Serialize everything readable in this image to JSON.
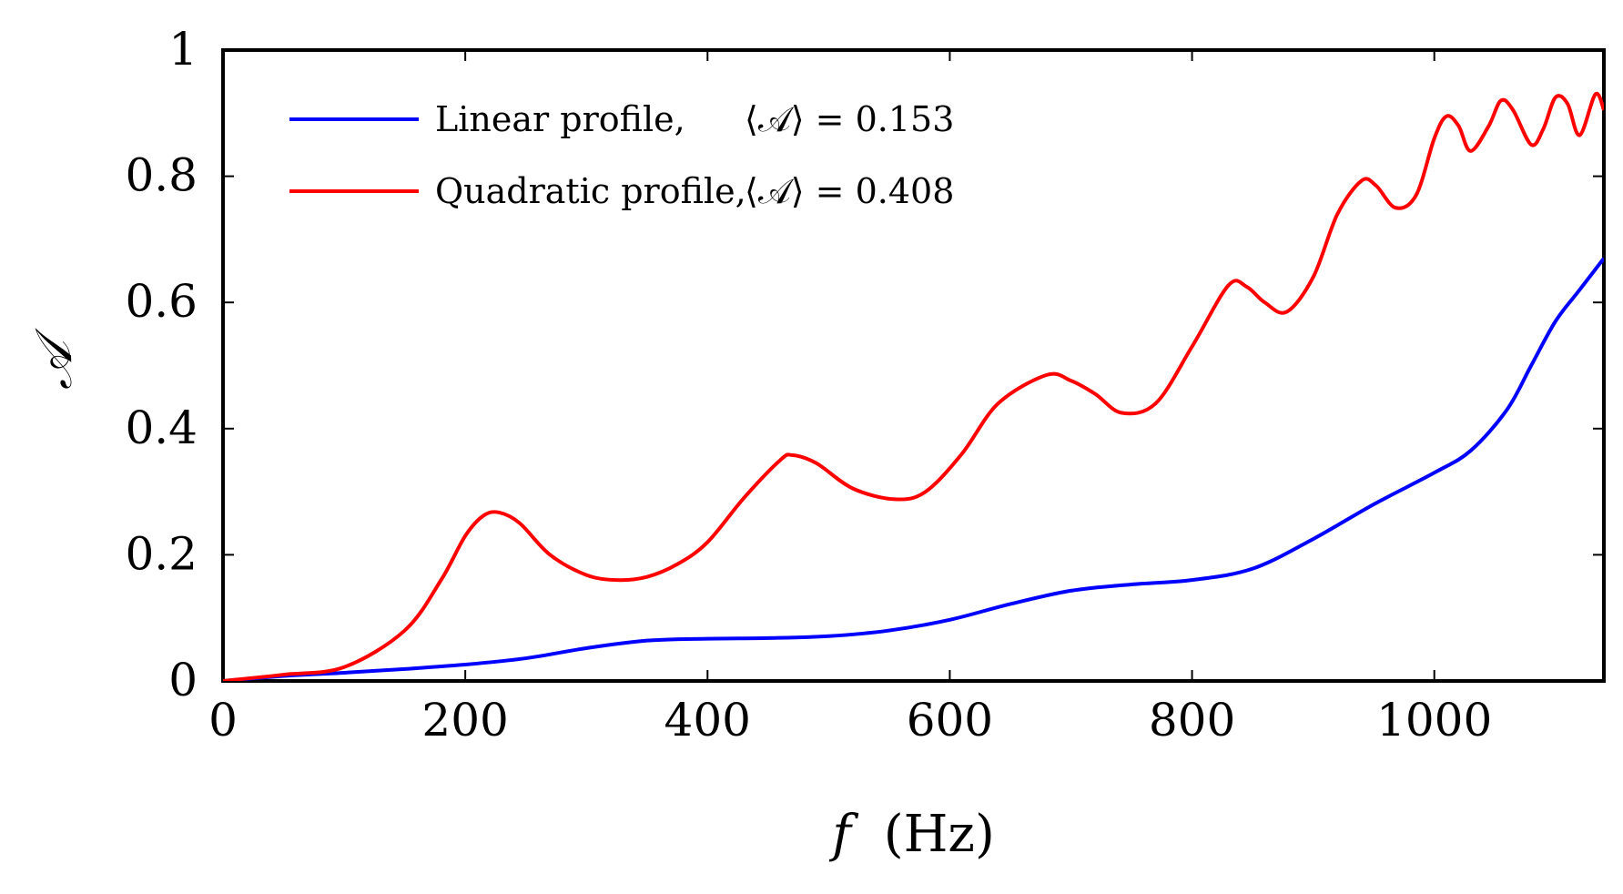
{
  "chart_data": {
    "type": "line",
    "title": "",
    "xlabel": "f (Hz)",
    "xlabel_var": "f",
    "xlabel_unit": "(Hz)",
    "ylabel": "𝒜",
    "xlim": [
      0,
      1140
    ],
    "ylim": [
      0,
      1
    ],
    "xticks": [
      0,
      200,
      400,
      600,
      800,
      1000
    ],
    "xtick_labels": [
      "0",
      "200",
      "400",
      "600",
      "800",
      "1000"
    ],
    "yticks": [
      0,
      0.2,
      0.4,
      0.6,
      0.8,
      1
    ],
    "ytick_labels": [
      "0",
      "0.2",
      "0.4",
      "0.6",
      "0.8",
      "1"
    ],
    "grid": false,
    "legend_position": "top-left",
    "series": [
      {
        "name": "Linear profile,",
        "mean_label": "⟨𝒜⟩ = 0.153",
        "color": "#0000ff",
        "x": [
          0,
          50,
          100,
          150,
          200,
          250,
          300,
          350,
          400,
          450,
          500,
          550,
          600,
          650,
          700,
          750,
          800,
          850,
          900,
          950,
          1000,
          1030,
          1060,
          1080,
          1100,
          1120,
          1140
        ],
        "y": [
          0.0,
          0.008,
          0.013,
          0.019,
          0.026,
          0.036,
          0.052,
          0.064,
          0.067,
          0.068,
          0.071,
          0.08,
          0.097,
          0.122,
          0.143,
          0.153,
          0.16,
          0.178,
          0.225,
          0.28,
          0.33,
          0.365,
          0.43,
          0.5,
          0.57,
          0.62,
          0.67
        ]
      },
      {
        "name": "Quadratic profile,",
        "mean_label": "⟨𝒜⟩ = 0.408",
        "color": "#ff0000",
        "x": [
          0,
          50,
          100,
          150,
          180,
          200,
          215,
          228,
          245,
          270,
          300,
          325,
          350,
          375,
          400,
          430,
          460,
          470,
          490,
          520,
          555,
          580,
          610,
          640,
          680,
          700,
          720,
          742,
          770,
          800,
          830,
          845,
          860,
          878,
          900,
          920,
          940,
          952,
          968,
          985,
          1000,
          1010,
          1020,
          1030,
          1045,
          1055,
          1065,
          1080,
          1090,
          1100,
          1110,
          1120,
          1133,
          1140
        ],
        "y": [
          0.0,
          0.01,
          0.022,
          0.08,
          0.16,
          0.23,
          0.262,
          0.267,
          0.25,
          0.2,
          0.168,
          0.16,
          0.165,
          0.185,
          0.22,
          0.29,
          0.35,
          0.358,
          0.345,
          0.305,
          0.288,
          0.3,
          0.36,
          0.44,
          0.485,
          0.476,
          0.455,
          0.425,
          0.44,
          0.53,
          0.627,
          0.625,
          0.6,
          0.585,
          0.64,
          0.74,
          0.793,
          0.785,
          0.75,
          0.77,
          0.86,
          0.895,
          0.88,
          0.84,
          0.88,
          0.92,
          0.905,
          0.85,
          0.875,
          0.925,
          0.915,
          0.865,
          0.93,
          0.905
        ]
      }
    ]
  }
}
